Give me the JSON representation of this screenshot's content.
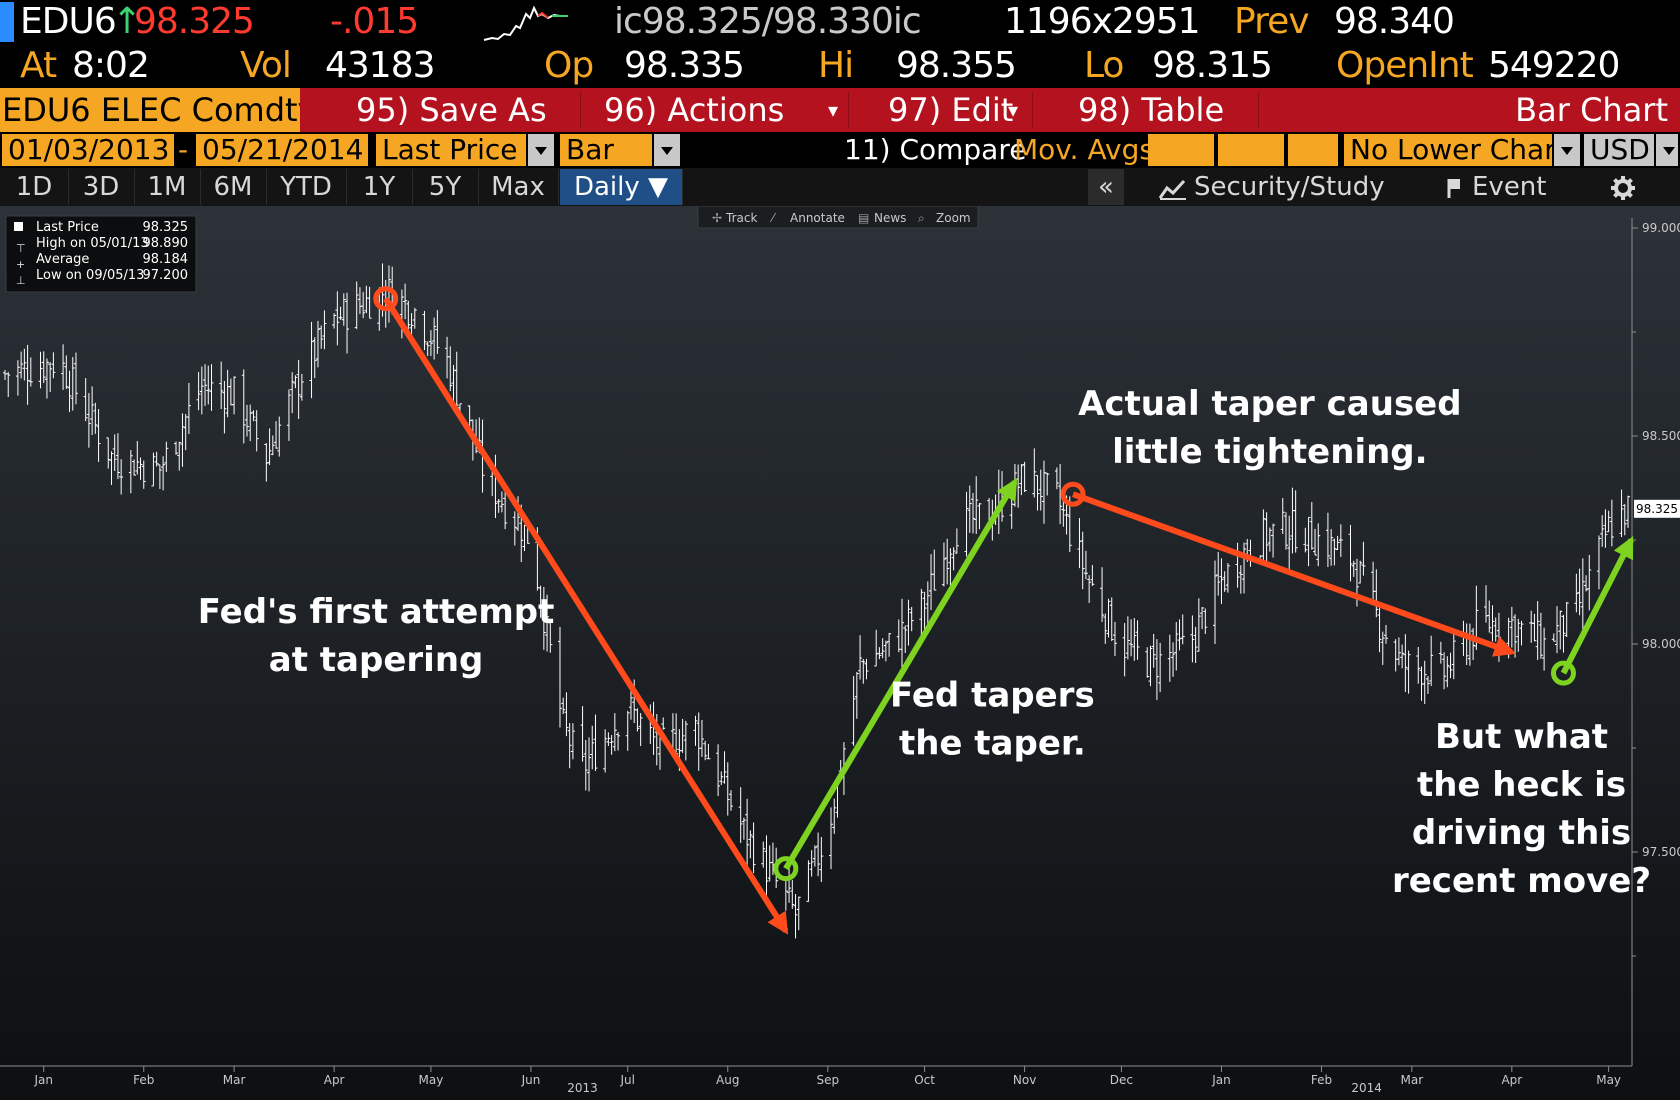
{
  "header": {
    "ticker": "EDU6",
    "arrow": "↑",
    "last": "98.325",
    "change": "-.015",
    "quote": "ic98.325/98.330ic",
    "size": "1196x2951",
    "prev_label": "Prev",
    "prev": "98.340",
    "at_label": "At",
    "time": "8:02",
    "vol_label": "Vol",
    "vol": "43183",
    "op_label": "Op",
    "op": "98.335",
    "hi_label": "Hi",
    "hi": "98.355",
    "lo_label": "Lo",
    "lo": "98.315",
    "oi_label": "OpenInt",
    "oi": "549220"
  },
  "menu": {
    "security": "EDU6 ELEC Comdty",
    "save_as": "95) Save As",
    "actions": "96) Actions",
    "edit": "97) Edit",
    "table": "98) Table",
    "title": "Bar Chart"
  },
  "params": {
    "start": "01/03/2013",
    "dash": "-",
    "end": "05/21/2014",
    "field": "Last Price",
    "type": "Bar",
    "compare": "11) Compare",
    "mov_avgs": "Mov. Avgs",
    "lower": "No Lower Chart",
    "currency": "USD"
  },
  "periods": [
    "1D",
    "3D",
    "1M",
    "6M",
    "YTD",
    "1Y",
    "5Y",
    "Max"
  ],
  "frequency": "Daily ▼",
  "toolbar": {
    "collapse": "«",
    "security_study": "Security/Study",
    "event": "Event"
  },
  "chart_tools": [
    "Track",
    "Annotate",
    "News",
    "Zoom"
  ],
  "legend": {
    "rows": [
      {
        "label": "Last Price",
        "value": "98.325"
      },
      {
        "label": "High on 05/01/13",
        "value": "98.890"
      },
      {
        "label": "Average",
        "value": "98.184"
      },
      {
        "label": "Low on 09/05/13",
        "value": "97.200"
      }
    ]
  },
  "colors": {
    "amber": "#f5a623",
    "menu_red": "#b4121f",
    "arrow_red": "#ff4a1c",
    "arrow_green": "#7ed321",
    "bars": "#ffffff"
  },
  "chart_data": {
    "type": "bar",
    "ylim": [
      97.0,
      99.0
    ],
    "yticks": [
      "99.000",
      "98.500",
      "98.000",
      "97.500"
    ],
    "last_value_tag": "98.325",
    "xlim": [
      "2013-01-03",
      "2014-05-21"
    ],
    "month_labels": [
      {
        "label": "Jan",
        "date": "2013-01-15"
      },
      {
        "label": "Feb",
        "date": "2013-02-15"
      },
      {
        "label": "Mar",
        "date": "2013-03-15"
      },
      {
        "label": "Apr",
        "date": "2013-04-15"
      },
      {
        "label": "May",
        "date": "2013-05-15"
      },
      {
        "label": "Jun",
        "date": "2013-06-15"
      },
      {
        "label": "Jul",
        "date": "2013-07-15"
      },
      {
        "label": "Aug",
        "date": "2013-08-15"
      },
      {
        "label": "Sep",
        "date": "2013-09-15"
      },
      {
        "label": "Oct",
        "date": "2013-10-15"
      },
      {
        "label": "Nov",
        "date": "2013-11-15"
      },
      {
        "label": "Dec",
        "date": "2013-12-15"
      },
      {
        "label": "Jan",
        "date": "2014-01-15"
      },
      {
        "label": "Feb",
        "date": "2014-02-15"
      },
      {
        "label": "Mar",
        "date": "2014-03-15"
      },
      {
        "label": "Apr",
        "date": "2014-04-15"
      },
      {
        "label": "May",
        "date": "2014-05-15"
      }
    ],
    "year_labels": [
      {
        "label": "2013",
        "date": "2013-07-01"
      },
      {
        "label": "2014",
        "date": "2014-03-01"
      }
    ],
    "price_path": [
      [
        "2013-01-03",
        98.65
      ],
      [
        "2013-01-20",
        98.68
      ],
      [
        "2013-02-05",
        98.45
      ],
      [
        "2013-02-20",
        98.42
      ],
      [
        "2013-03-05",
        98.62
      ],
      [
        "2013-03-15",
        98.6
      ],
      [
        "2013-03-25",
        98.45
      ],
      [
        "2013-04-05",
        98.65
      ],
      [
        "2013-04-15",
        98.78
      ],
      [
        "2013-05-01",
        98.85
      ],
      [
        "2013-05-10",
        98.8
      ],
      [
        "2013-05-20",
        98.68
      ],
      [
        "2013-06-01",
        98.4
      ],
      [
        "2013-06-15",
        98.25
      ],
      [
        "2013-06-25",
        97.8
      ],
      [
        "2013-07-01",
        97.7
      ],
      [
        "2013-07-15",
        97.85
      ],
      [
        "2013-07-25",
        97.75
      ],
      [
        "2013-08-05",
        97.8
      ],
      [
        "2013-08-20",
        97.55
      ],
      [
        "2013-09-05",
        97.35
      ],
      [
        "2013-09-15",
        97.55
      ],
      [
        "2013-09-25",
        97.95
      ],
      [
        "2013-10-05",
        98.0
      ],
      [
        "2013-10-15",
        98.1
      ],
      [
        "2013-10-25",
        98.28
      ],
      [
        "2013-11-05",
        98.32
      ],
      [
        "2013-11-15",
        98.4
      ],
      [
        "2013-11-25",
        98.35
      ],
      [
        "2013-12-05",
        98.15
      ],
      [
        "2013-12-15",
        98.0
      ],
      [
        "2013-12-25",
        97.95
      ],
      [
        "2014-01-05",
        98.0
      ],
      [
        "2014-01-15",
        98.15
      ],
      [
        "2014-01-25",
        98.25
      ],
      [
        "2014-02-05",
        98.28
      ],
      [
        "2014-02-15",
        98.25
      ],
      [
        "2014-02-25",
        98.2
      ],
      [
        "2014-03-05",
        98.05
      ],
      [
        "2014-03-12",
        97.95
      ],
      [
        "2014-03-25",
        97.93
      ],
      [
        "2014-04-05",
        98.05
      ],
      [
        "2014-04-15",
        98.05
      ],
      [
        "2014-04-25",
        98.0
      ],
      [
        "2014-05-05",
        98.08
      ],
      [
        "2014-05-15",
        98.28
      ],
      [
        "2014-05-21",
        98.325
      ]
    ],
    "annotations": [
      {
        "text": [
          "Fed's first attempt",
          "at tapering"
        ],
        "date": "2013-04-28",
        "value": 98.05
      },
      {
        "text": [
          "Fed tapers",
          "the taper."
        ],
        "date": "2013-11-05",
        "value": 97.85
      },
      {
        "text": [
          "Actual taper caused",
          "little tightening."
        ],
        "date": "2014-01-30",
        "value": 98.55
      },
      {
        "text": [
          "But what",
          "the heck is",
          "driving this",
          "recent move?"
        ],
        "date": "2014-04-18",
        "value": 97.75
      }
    ],
    "arrows": [
      {
        "color": "red",
        "from": [
          "2013-05-01",
          98.83
        ],
        "to": [
          "2013-09-02",
          97.31
        ]
      },
      {
        "color": "green",
        "from": [
          "2013-09-02",
          97.46
        ],
        "to": [
          "2013-11-12",
          98.39
        ]
      },
      {
        "color": "red",
        "from": [
          "2013-11-30",
          98.36
        ],
        "to": [
          "2014-04-15",
          97.98
        ]
      },
      {
        "color": "green",
        "from": [
          "2014-05-01",
          97.93
        ],
        "to": [
          "2014-05-22",
          98.25
        ]
      }
    ]
  }
}
